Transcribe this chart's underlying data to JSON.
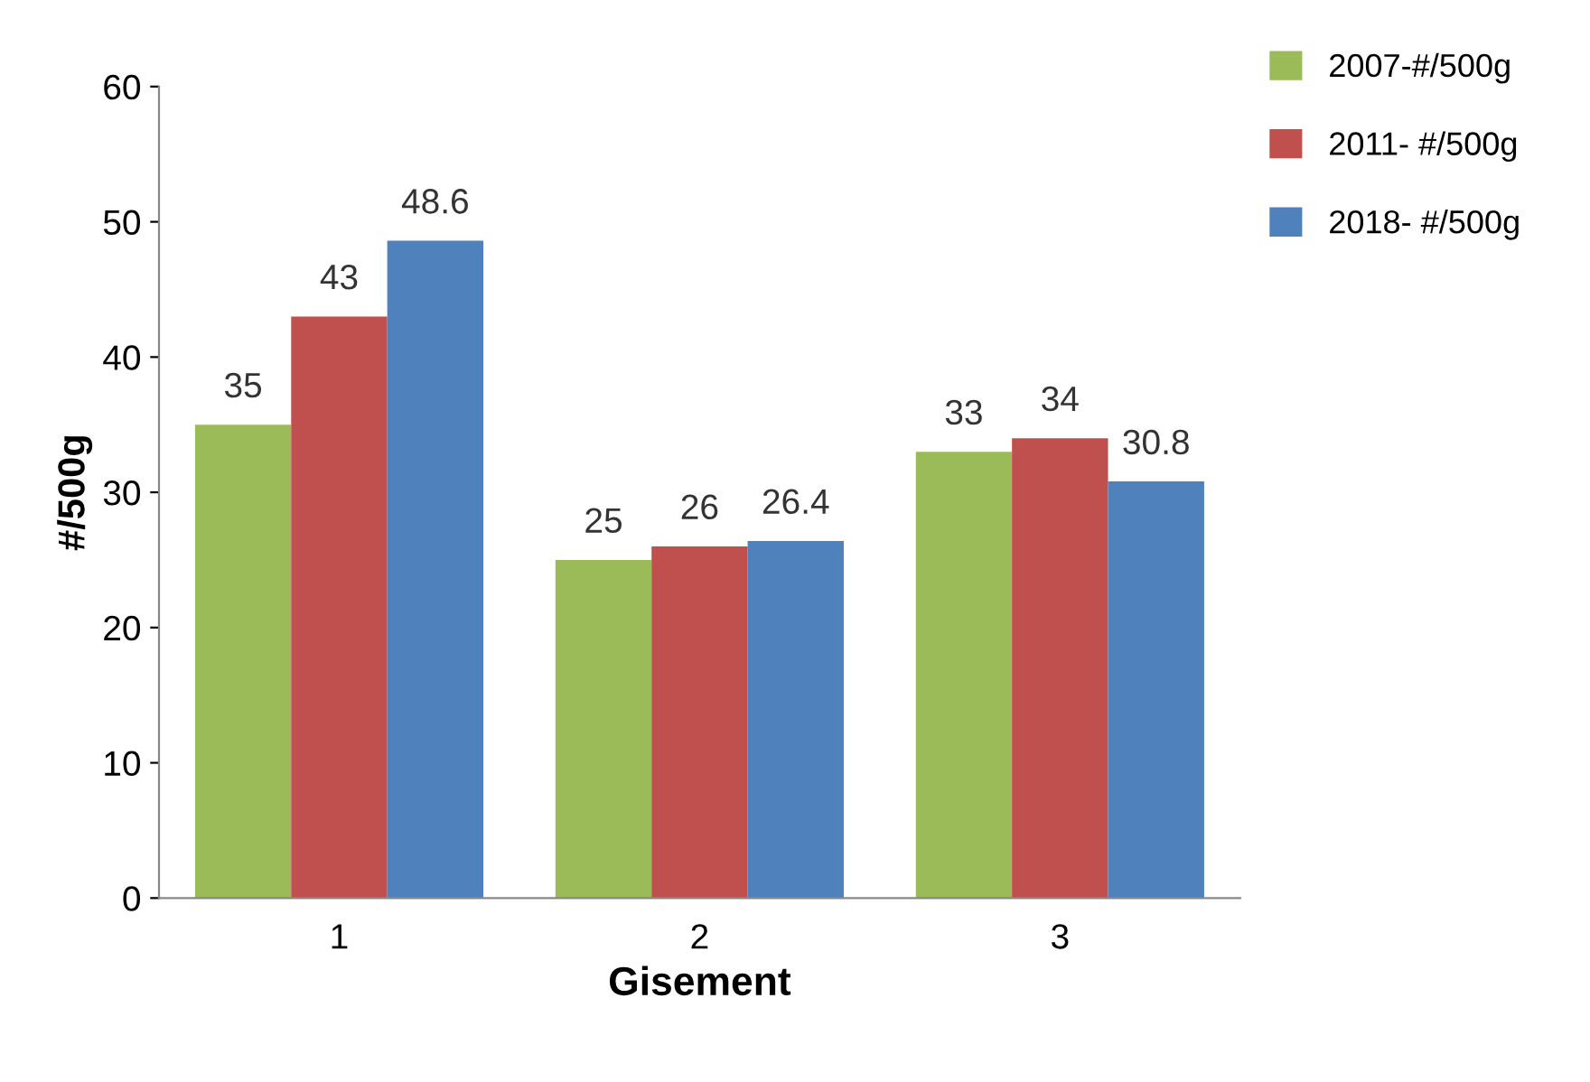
{
  "chart_data": {
    "type": "bar",
    "xlabel": "Gisement",
    "ylabel": "#/500g",
    "categories": [
      "1",
      "2",
      "3"
    ],
    "series": [
      {
        "name": "2007-#/500g",
        "color": "#9bbb59",
        "values": [
          35,
          25,
          33
        ]
      },
      {
        "name": "2011- #/500g",
        "color": "#c0504d",
        "values": [
          43,
          26,
          34
        ]
      },
      {
        "name": "2018- #/500g",
        "color": "#4f81bd",
        "values": [
          48.6,
          26.4,
          30.8
        ]
      }
    ],
    "ylim": [
      0,
      60
    ],
    "yticks": [
      0,
      10,
      20,
      30,
      40,
      50,
      60
    ],
    "grid": false,
    "legend": "top right",
    "data_labels": true
  }
}
